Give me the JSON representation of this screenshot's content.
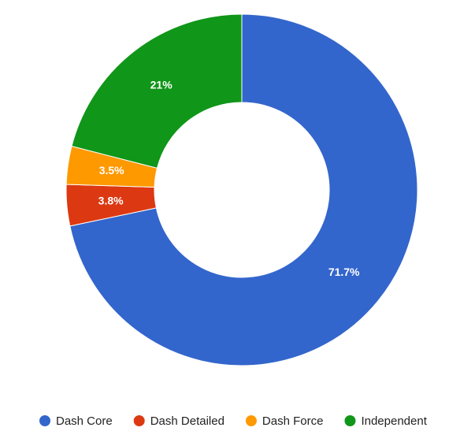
{
  "chart_data": {
    "type": "donut",
    "categories": [
      "Dash Core",
      "Dash Detailed",
      "Dash Force",
      "Independent"
    ],
    "values": [
      71.7,
      3.8,
      3.5,
      21
    ],
    "value_labels": [
      "71.7%",
      "3.8%",
      "3.5%",
      "21%"
    ],
    "colors": [
      "#3366cc",
      "#dc3912",
      "#ff9900",
      "#109618"
    ],
    "legend": "bottom"
  }
}
